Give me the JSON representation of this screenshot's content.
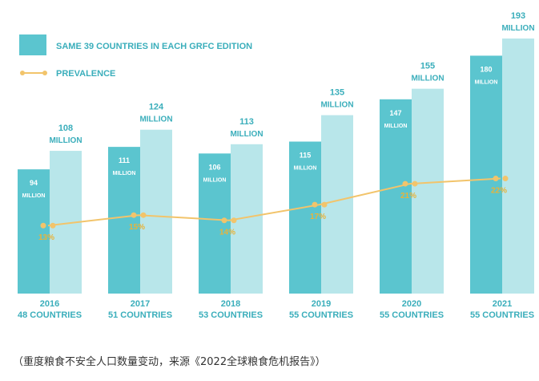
{
  "chart_data": {
    "type": "bar",
    "categories": [
      "2016",
      "2017",
      "2018",
      "2019",
      "2020",
      "2021"
    ],
    "category_sublabels": [
      "48 COUNTRIES",
      "51 COUNTRIES",
      "53 COUNTRIES",
      "55 COUNTRIES",
      "55 COUNTRIES",
      "55 COUNTRIES"
    ],
    "series": [
      {
        "name": "SAME 39 COUNTRIES IN EACH GRFC EDITION",
        "values": [
          94,
          111,
          106,
          115,
          147,
          180
        ],
        "color": "#5bc5cf"
      },
      {
        "values": [
          108,
          124,
          113,
          135,
          155,
          193
        ],
        "color": "#b8e6ea"
      }
    ],
    "unit_label": "MILLION",
    "line_series": {
      "name": "PREVALENCE",
      "values": [
        13,
        15,
        14,
        17,
        21,
        22
      ],
      "suffix": "%",
      "color": "#f2c46b",
      "label_color": "#e8b33a"
    },
    "ylim": [
      0,
      210
    ],
    "line_ylim": [
      0,
      50
    ],
    "legend_placement": "top-left",
    "grid": false,
    "caption": "（重度粮食不安全人口数量变动，来源《2022全球粮食危机报告》）"
  }
}
